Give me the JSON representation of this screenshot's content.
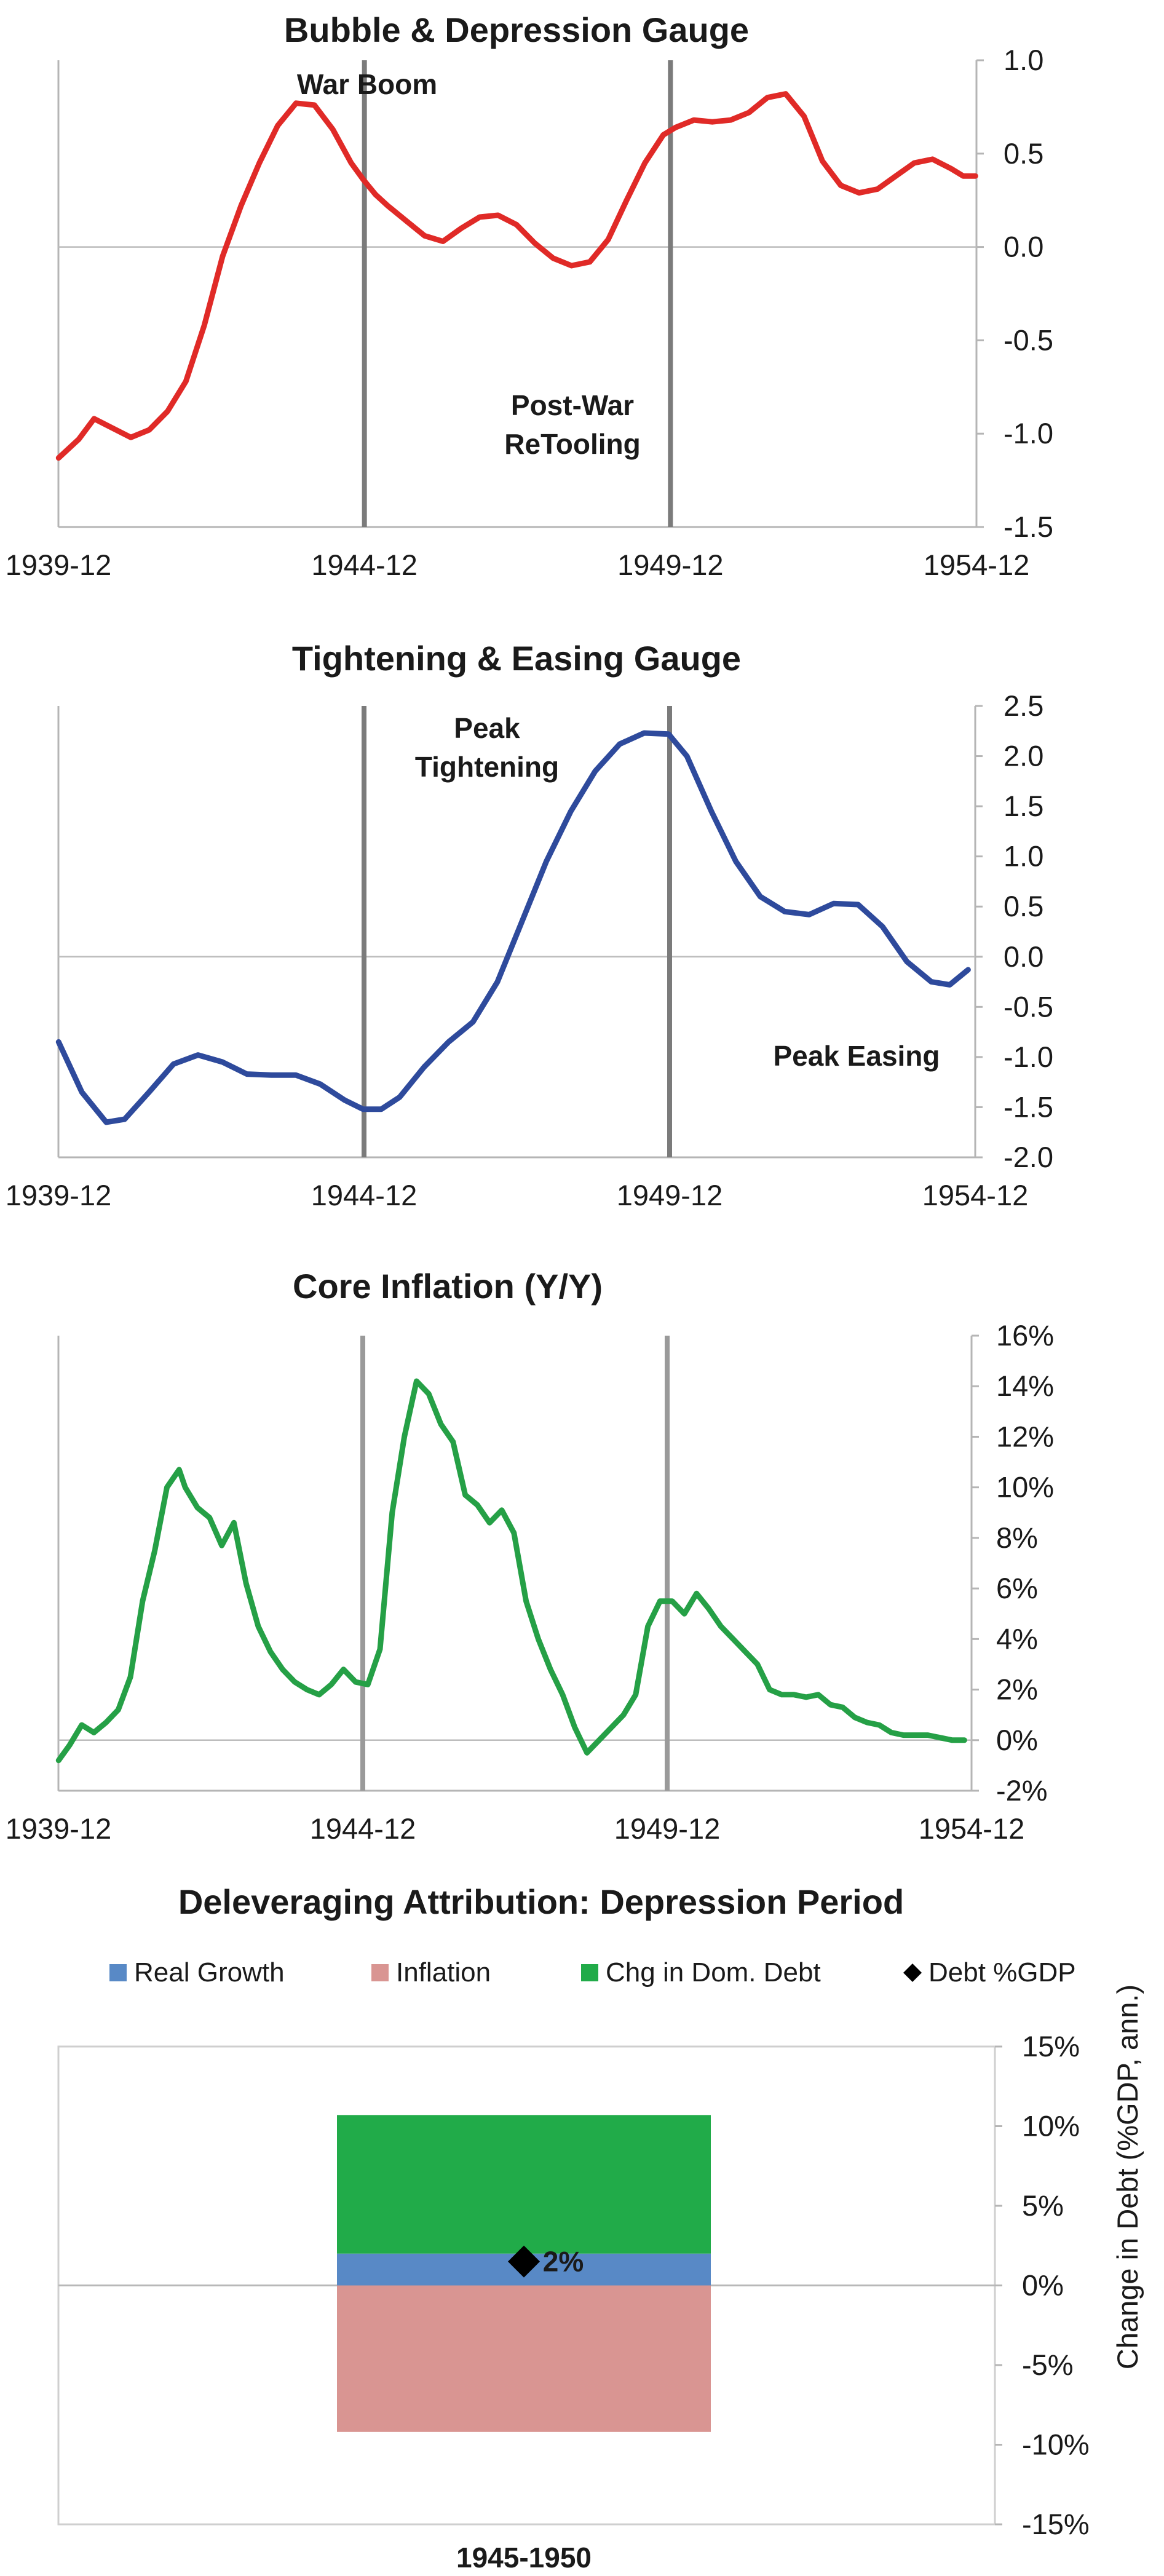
{
  "chart_data": [
    {
      "type": "line",
      "title": "Bubble & Depression Gauge",
      "x_ticks": [
        "1939-12",
        "1944-12",
        "1949-12",
        "1954-12"
      ],
      "x_range": [
        1939.917,
        1954.917
      ],
      "ylim": [
        -1.5,
        1.0
      ],
      "y_ticks": [
        "1.0",
        "0.5",
        "0.0",
        "-0.5",
        "-1.0",
        "-1.5"
      ],
      "vlines": [
        1944.917,
        1949.917
      ],
      "color": "#e02a27",
      "annotations": [
        "War Boom",
        "Post-War",
        "ReTooling"
      ],
      "series": [
        {
          "x": [
            1939.92,
            1940.25,
            1940.5,
            1940.8,
            1941.1,
            1941.4,
            1941.7,
            1942.0,
            1942.3,
            1942.6,
            1942.9,
            1943.2,
            1943.5,
            1943.8,
            1944.1,
            1944.4,
            1944.7,
            1944.9,
            1945.1,
            1945.3,
            1945.6,
            1945.9,
            1946.2,
            1946.5,
            1946.8,
            1947.1,
            1947.4,
            1947.7,
            1948.0,
            1948.3,
            1948.6,
            1948.9,
            1949.2,
            1949.5,
            1949.8,
            1950.0,
            1950.3,
            1950.6,
            1950.9,
            1951.2,
            1951.5,
            1951.8,
            1952.1,
            1952.4,
            1952.7,
            1953.0,
            1953.3,
            1953.6,
            1953.9,
            1954.2,
            1954.5,
            1954.7,
            1954.9
          ],
          "y": [
            -1.13,
            -1.03,
            -0.92,
            -0.97,
            -1.02,
            -0.98,
            -0.88,
            -0.72,
            -0.42,
            -0.05,
            0.22,
            0.45,
            0.65,
            0.77,
            0.76,
            0.63,
            0.45,
            0.36,
            0.28,
            0.22,
            0.14,
            0.06,
            0.03,
            0.1,
            0.16,
            0.17,
            0.12,
            0.02,
            -0.06,
            -0.1,
            -0.08,
            0.04,
            0.25,
            0.45,
            0.6,
            0.64,
            0.68,
            0.67,
            0.68,
            0.72,
            0.8,
            0.82,
            0.7,
            0.46,
            0.33,
            0.29,
            0.31,
            0.38,
            0.45,
            0.47,
            0.42,
            0.38,
            0.38
          ]
        }
      ]
    },
    {
      "type": "line",
      "title": "Tightening & Easing Gauge",
      "x_ticks": [
        "1939-12",
        "1944-12",
        "1949-12",
        "1954-12"
      ],
      "x_range": [
        1939.917,
        1954.917
      ],
      "ylim": [
        -2.0,
        2.5
      ],
      "y_ticks": [
        "2.5",
        "2.0",
        "1.5",
        "1.0",
        "0.5",
        "0.0",
        "-0.5",
        "-1.0",
        "-1.5",
        "-2.0"
      ],
      "vlines": [
        1944.917,
        1949.917
      ],
      "color": "#2e4a9c",
      "annotations": [
        "Peak",
        "Tightening",
        "Peak Easing"
      ],
      "series": [
        {
          "x": [
            1939.92,
            1940.3,
            1940.7,
            1941.0,
            1941.4,
            1941.8,
            1942.2,
            1942.6,
            1943.0,
            1943.4,
            1943.8,
            1944.2,
            1944.6,
            1944.9,
            1945.2,
            1945.5,
            1945.9,
            1946.3,
            1946.7,
            1947.1,
            1947.5,
            1947.9,
            1948.3,
            1948.7,
            1949.1,
            1949.5,
            1949.9,
            1950.2,
            1950.6,
            1951.0,
            1951.4,
            1951.8,
            1952.2,
            1952.6,
            1953.0,
            1953.4,
            1953.8,
            1954.2,
            1954.5,
            1954.8
          ],
          "y": [
            -0.85,
            -1.35,
            -1.65,
            -1.62,
            -1.35,
            -1.07,
            -0.98,
            -1.05,
            -1.17,
            -1.18,
            -1.18,
            -1.27,
            -1.43,
            -1.52,
            -1.52,
            -1.4,
            -1.1,
            -0.85,
            -0.65,
            -0.25,
            0.35,
            0.95,
            1.45,
            1.85,
            2.12,
            2.23,
            2.22,
            2.0,
            1.45,
            0.95,
            0.6,
            0.45,
            0.42,
            0.53,
            0.52,
            0.3,
            -0.05,
            -0.25,
            -0.28,
            -0.13
          ]
        }
      ]
    },
    {
      "type": "line",
      "title": "Core Inflation (Y/Y)",
      "x_ticks": [
        "1939-12",
        "1944-12",
        "1949-12",
        "1954-12"
      ],
      "x_range": [
        1939.917,
        1954.917
      ],
      "ylim": [
        -2,
        16
      ],
      "y_ticks": [
        "16%",
        "14%",
        "12%",
        "10%",
        "8%",
        "6%",
        "4%",
        "2%",
        "0%",
        "-2%"
      ],
      "vlines": [
        1944.917,
        1949.917
      ],
      "color": "#25a046",
      "series": [
        {
          "x": [
            1939.92,
            1940.1,
            1940.3,
            1940.5,
            1940.7,
            1940.9,
            1941.1,
            1941.3,
            1941.5,
            1941.7,
            1941.9,
            1942.0,
            1942.2,
            1942.4,
            1942.6,
            1942.8,
            1943.0,
            1943.2,
            1943.4,
            1943.6,
            1943.8,
            1944.0,
            1944.2,
            1944.4,
            1944.6,
            1944.8,
            1945.0,
            1945.2,
            1945.4,
            1945.6,
            1945.8,
            1946.0,
            1946.2,
            1946.4,
            1946.6,
            1946.8,
            1947.0,
            1947.2,
            1947.4,
            1947.6,
            1947.8,
            1948.0,
            1948.2,
            1948.4,
            1948.6,
            1948.8,
            1949.0,
            1949.2,
            1949.4,
            1949.6,
            1949.8,
            1950.0,
            1950.2,
            1950.4,
            1950.6,
            1950.8,
            1951.0,
            1951.2,
            1951.4,
            1951.6,
            1951.8,
            1952.0,
            1952.2,
            1952.4,
            1952.6,
            1952.8,
            1953.0,
            1953.2,
            1953.4,
            1953.6,
            1953.8,
            1954.0,
            1954.2,
            1954.4,
            1954.6,
            1954.8
          ],
          "y": [
            -0.8,
            -0.2,
            0.6,
            0.3,
            0.7,
            1.2,
            2.5,
            5.5,
            7.5,
            10.0,
            10.7,
            10.0,
            9.2,
            8.8,
            7.7,
            8.6,
            6.2,
            4.5,
            3.5,
            2.8,
            2.3,
            2.0,
            1.8,
            2.2,
            2.8,
            2.3,
            2.2,
            3.6,
            9.0,
            12.0,
            14.2,
            13.7,
            12.5,
            11.8,
            9.7,
            9.3,
            8.6,
            9.1,
            8.2,
            5.5,
            4.0,
            2.8,
            1.8,
            0.5,
            -0.5,
            0.0,
            0.5,
            1.0,
            1.8,
            4.5,
            5.5,
            5.5,
            5.0,
            5.8,
            5.2,
            4.5,
            4.0,
            3.5,
            3.0,
            2.0,
            1.8,
            1.8,
            1.7,
            1.8,
            1.4,
            1.3,
            0.9,
            0.7,
            0.6,
            0.3,
            0.2,
            0.2,
            0.2,
            0.1,
            0.0,
            0.0
          ]
        }
      ]
    },
    {
      "type": "bar",
      "title": "Deleveraging Attribution: Depression Period",
      "categories": [
        "1945-1950"
      ],
      "ylabel": "Change in Debt (%GDP, ann.)",
      "ylim": [
        -15,
        15
      ],
      "y_ticks": [
        "15%",
        "10%",
        "5%",
        "0%",
        "-5%",
        "-10%",
        "-15%"
      ],
      "legend": [
        {
          "name": "Real Growth",
          "color": "#5889c6",
          "marker": "square"
        },
        {
          "name": "Inflation",
          "color": "#d99592",
          "marker": "square"
        },
        {
          "name": "Chg in Dom. Debt",
          "color": "#21ab49",
          "marker": "square"
        },
        {
          "name": "Debt %GDP",
          "color": "#000000",
          "marker": "diamond"
        }
      ],
      "series": [
        {
          "name": "Real Growth",
          "values": [
            2.0
          ]
        },
        {
          "name": "Inflation",
          "values": [
            -9.2
          ]
        },
        {
          "name": "Chg in Dom. Debt",
          "values": [
            8.7
          ]
        },
        {
          "name": "Debt %GDP",
          "values": [
            1.5
          ]
        }
      ],
      "data_label": "2%"
    }
  ]
}
